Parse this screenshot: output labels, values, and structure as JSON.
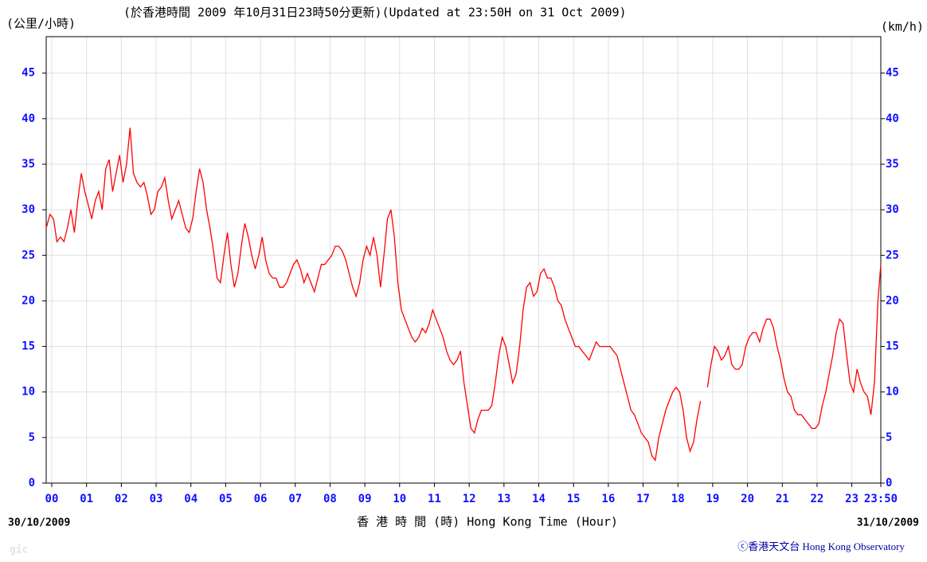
{
  "chart_data": {
    "type": "line",
    "title": "(於香港時間 2009 年10月31日23時50分更新)(Updated at 23:50H on 31 Oct 2009)",
    "y_label_left": "(公里/小時)",
    "y_label_right": "(km/h)",
    "x_label": "香 港 時 間 (時) Hong Kong Time (Hour)",
    "start_date": "30/10/2009",
    "end_date": "31/10/2009",
    "credit": "ⓒ香港天文台 Hong Kong Observatory",
    "corner_text": "gic",
    "xlim": [
      -0.16,
      23.833
    ],
    "xticks": [
      {
        "value": 0,
        "label": "00"
      },
      {
        "value": 1,
        "label": "01"
      },
      {
        "value": 2,
        "label": "02"
      },
      {
        "value": 3,
        "label": "03"
      },
      {
        "value": 4,
        "label": "04"
      },
      {
        "value": 5,
        "label": "05"
      },
      {
        "value": 6,
        "label": "06"
      },
      {
        "value": 7,
        "label": "07"
      },
      {
        "value": 8,
        "label": "08"
      },
      {
        "value": 9,
        "label": "09"
      },
      {
        "value": 10,
        "label": "10"
      },
      {
        "value": 11,
        "label": "11"
      },
      {
        "value": 12,
        "label": "12"
      },
      {
        "value": 13,
        "label": "13"
      },
      {
        "value": 14,
        "label": "14"
      },
      {
        "value": 15,
        "label": "15"
      },
      {
        "value": 16,
        "label": "16"
      },
      {
        "value": 17,
        "label": "17"
      },
      {
        "value": 18,
        "label": "18"
      },
      {
        "value": 19,
        "label": "19"
      },
      {
        "value": 20,
        "label": "20"
      },
      {
        "value": 21,
        "label": "21"
      },
      {
        "value": 22,
        "label": "22"
      },
      {
        "value": 23,
        "label": "23"
      },
      {
        "value": 23.833,
        "label": "23:50"
      }
    ],
    "ylim": [
      0,
      49
    ],
    "yticks": [
      0,
      5,
      10,
      15,
      20,
      25,
      30,
      35,
      40,
      45
    ],
    "grid": true,
    "series": [
      {
        "color": "#ff0000",
        "x": [
          -0.16,
          -0.05,
          0.05,
          0.15,
          0.25,
          0.35,
          0.45,
          0.55,
          0.65,
          0.75,
          0.85,
          0.95,
          1.05,
          1.15,
          1.25,
          1.35,
          1.45,
          1.55,
          1.65,
          1.75,
          1.85,
          1.95,
          2.05,
          2.15,
          2.25,
          2.35,
          2.45,
          2.55,
          2.65,
          2.75,
          2.85,
          2.95,
          3.05,
          3.15,
          3.25,
          3.35,
          3.45,
          3.55,
          3.65,
          3.75,
          3.85,
          3.95,
          4.05,
          4.15,
          4.25,
          4.35,
          4.45,
          4.55,
          4.65,
          4.75,
          4.85,
          4.95,
          5.05,
          5.15,
          5.25,
          5.35,
          5.45,
          5.55,
          5.65,
          5.75,
          5.85,
          5.95,
          6.05,
          6.15,
          6.25,
          6.35,
          6.45,
          6.55,
          6.65,
          6.75,
          6.85,
          6.95,
          7.05,
          7.15,
          7.25,
          7.35,
          7.45,
          7.55,
          7.65,
          7.75,
          7.85,
          7.95,
          8.05,
          8.15,
          8.25,
          8.35,
          8.45,
          8.55,
          8.65,
          8.75,
          8.85,
          8.95,
          9.05,
          9.15,
          9.25,
          9.35,
          9.45,
          9.55,
          9.65,
          9.75,
          9.85,
          9.95,
          10.05,
          10.15,
          10.25,
          10.35,
          10.45,
          10.55,
          10.65,
          10.75,
          10.85,
          10.95,
          11.05,
          11.15,
          11.25,
          11.35,
          11.45,
          11.55,
          11.65,
          11.75,
          11.85,
          11.95,
          12.05,
          12.15,
          12.25,
          12.35,
          12.45,
          12.55,
          12.65,
          12.75,
          12.85,
          12.95,
          13.05,
          13.15,
          13.25,
          13.35,
          13.45,
          13.55,
          13.65,
          13.75,
          13.85,
          13.95,
          14.05,
          14.15,
          14.25,
          14.35,
          14.45,
          14.55,
          14.65,
          14.75,
          14.85,
          14.95,
          15.05,
          15.15,
          15.25,
          15.35,
          15.45,
          15.55,
          15.65,
          15.75,
          15.85,
          15.95,
          16.05,
          16.15,
          16.25,
          16.35,
          16.45,
          16.55,
          16.65,
          16.75,
          16.85,
          16.95,
          17.05,
          17.15,
          17.25,
          17.35,
          17.45,
          17.55,
          17.65,
          17.75,
          17.85,
          17.95,
          18.05,
          18.15,
          18.25,
          18.35,
          18.45,
          18.55,
          18.65,
          18.75,
          18.85,
          18.95,
          19.05,
          19.15,
          19.25,
          19.35,
          19.45,
          19.55,
          19.65,
          19.75,
          19.85,
          19.95,
          20.05,
          20.15,
          20.25,
          20.35,
          20.45,
          20.55,
          20.65,
          20.75,
          20.85,
          20.95,
          21.05,
          21.15,
          21.25,
          21.35,
          21.45,
          21.55,
          21.65,
          21.75,
          21.85,
          21.95,
          22.05,
          22.15,
          22.25,
          22.35,
          22.45,
          22.55,
          22.65,
          22.75,
          22.85,
          22.95,
          23.05,
          23.15,
          23.25,
          23.35,
          23.45,
          23.55,
          23.65,
          23.75,
          23.833
        ],
        "values": [
          28,
          29.5,
          29,
          26.5,
          27,
          26.5,
          28,
          30,
          27.5,
          31,
          34,
          32,
          30.5,
          29,
          31,
          32,
          30,
          34.5,
          35.5,
          32,
          34,
          36,
          33,
          35,
          39,
          34,
          33,
          32.5,
          33,
          31.5,
          29.5,
          30,
          32,
          32.5,
          33.5,
          31,
          29,
          30,
          31,
          29.5,
          28,
          27.5,
          29,
          32,
          34.5,
          33,
          30,
          28,
          25.5,
          22.5,
          22,
          25,
          27.5,
          24,
          21.5,
          23,
          26,
          28.5,
          27,
          25,
          23.5,
          25,
          27,
          24.5,
          23,
          22.5,
          22.5,
          21.5,
          21.5,
          22,
          23,
          24,
          24.5,
          23.5,
          22,
          23,
          22,
          21,
          22.5,
          24,
          24,
          24.5,
          25,
          26,
          26,
          25.5,
          24.5,
          23,
          21.5,
          20.5,
          22,
          24.5,
          26,
          25,
          27,
          25,
          21.5,
          25,
          29,
          30,
          27,
          22,
          19,
          18,
          17,
          16,
          15.5,
          16,
          17,
          16.5,
          17.5,
          19,
          18,
          17,
          16,
          14.5,
          13.5,
          13,
          13.5,
          14.5,
          11,
          8.5,
          6,
          5.5,
          7,
          8,
          8,
          8,
          8.5,
          11,
          14,
          16,
          15,
          13,
          11,
          12,
          15,
          19,
          21.5,
          22,
          20.5,
          21,
          23,
          23.5,
          22.5,
          22.5,
          21.5,
          20,
          19.5,
          18,
          17,
          16,
          15,
          15,
          14.5,
          14,
          13.5,
          14.5,
          15.5,
          15,
          15,
          15,
          15,
          14.5,
          14,
          12.5,
          11,
          9.5,
          8,
          7.5,
          6.5,
          5.5,
          5,
          4.5,
          3,
          2.5,
          5,
          6.5,
          8,
          9,
          10,
          10.5,
          10,
          8,
          5,
          3.5,
          4.5,
          7,
          9,
          null,
          10.5,
          13,
          15,
          14.5,
          13.5,
          14,
          15,
          13,
          12.5,
          12.5,
          13,
          15,
          16,
          16.5,
          16.5,
          15.5,
          17,
          18,
          18,
          17,
          15,
          13.5,
          11.5,
          10,
          9.5,
          8,
          7.5,
          7.5,
          7,
          6.5,
          6,
          6,
          6.5,
          8.5,
          10,
          12,
          14,
          16.5,
          18,
          17.5,
          14,
          11,
          10,
          12.5,
          11,
          10,
          9.5,
          7.5,
          11,
          20,
          24
        ]
      }
    ]
  }
}
